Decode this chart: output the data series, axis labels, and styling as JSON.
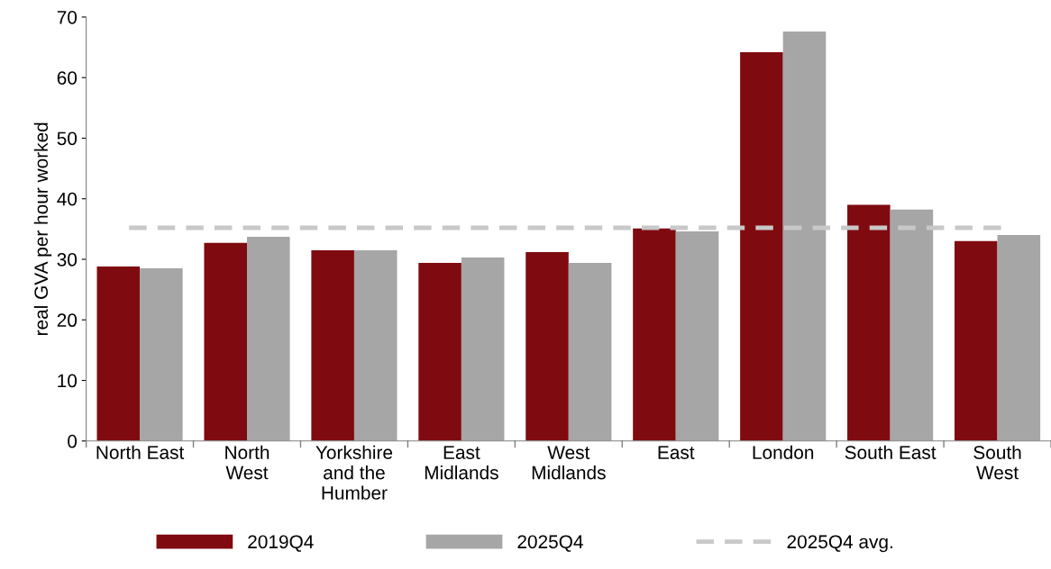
{
  "chart_data": {
    "type": "bar",
    "ylabel": "real GVA per hour worked",
    "categories": [
      "North East",
      "North\nWest",
      "Yorkshire\nand the\nHumber",
      "East\nMidlands",
      "West\nMidlands",
      "East",
      "London",
      "South East",
      "South\nWest"
    ],
    "series": [
      {
        "name": "2019Q4",
        "color": "#7f0b10",
        "values": [
          28.8,
          32.7,
          31.5,
          29.4,
          31.2,
          35.1,
          64.2,
          39.0,
          33.0
        ]
      },
      {
        "name": "2025Q4",
        "color": "#a6a6a6",
        "values": [
          28.5,
          33.7,
          31.5,
          30.3,
          29.4,
          34.6,
          67.6,
          38.2,
          34.0
        ]
      }
    ],
    "ref_lines": [
      {
        "axis": "y",
        "value": 35.2,
        "label": "2025Q4 avg.",
        "color": "#c8c8c8",
        "line_style": "dashed"
      }
    ],
    "ylim": [
      0,
      70
    ],
    "yticks": [
      0,
      10,
      20,
      30,
      40,
      50,
      60,
      70
    ],
    "grid": false,
    "legend": "bottom"
  }
}
